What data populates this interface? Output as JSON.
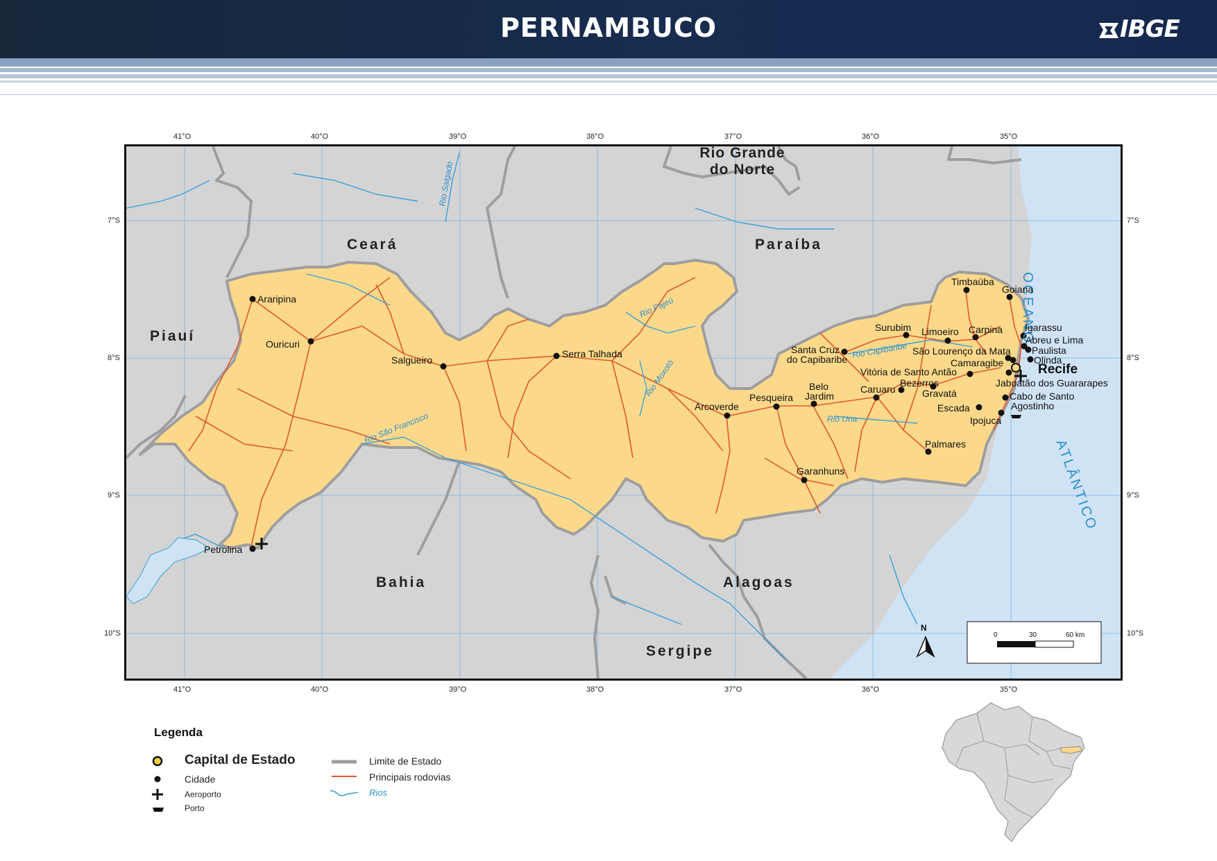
{
  "header": {
    "title": "PERNAMBUCO",
    "logo_text": "IBGE",
    "background": "#172c4f"
  },
  "map": {
    "lon_labels": [
      "41°O",
      "40°O",
      "39°O",
      "38°O",
      "37°O",
      "36°O",
      "35°O"
    ],
    "lat_labels": [
      "7°S",
      "8°S",
      "9°S",
      "10°S"
    ],
    "neighbors": {
      "rio_grande_do_norte_line1": "Rio Grande",
      "rio_grande_do_norte_line2": "do Norte",
      "ceara": "Ceará",
      "paraiba": "Paraíba",
      "piaui": "Piauí",
      "bahia": "Bahia",
      "alagoas": "Alagoas",
      "sergipe": "Sergipe"
    },
    "ocean": {
      "line1": "OCEANO",
      "line2": "ATLÂNTICO"
    },
    "rivers": {
      "salgado": "Rio Salgado",
      "pajeu": "Rio Pajeú",
      "moxoto": "Rio Moxotó",
      "sao_francisco": "Rio São Francisco",
      "capibaribe": "Rio Capibaribe",
      "una": "Rio Una"
    },
    "capital": "Recife",
    "cities": {
      "araripina": "Araripina",
      "ouricuri": "Ouricuri",
      "salgueiro": "Salgueiro",
      "serra_talhada": "Serra Talhada",
      "petrolina": "Petrolina",
      "arcoverde": "Arcoverde",
      "pesqueira": "Pesqueira",
      "belo_jardim_1": "Belo",
      "belo_jardim_2": "Jardim",
      "caruaru": "Caruaru",
      "bezerros": "Bezerros",
      "gravata": "Gravatá",
      "santa_cruz_1": "Santa Cruz",
      "santa_cruz_2": "do Capibaribe",
      "surubim": "Surubim",
      "limoeiro": "Limoeiro",
      "carpina": "Carpina",
      "timbauba": "Timbaúba",
      "goiana": "Goiana",
      "igarassu": "Igarassu",
      "abreu_e_lima": "Abreu e Lima",
      "paulista": "Paulista",
      "olinda": "Olinda",
      "sao_lourenco": "São Lourenço da Mata",
      "camaragibe": "Camaragibe",
      "vitoria": "Vitória de Santo Antão",
      "jaboatao": "Jaboatão dos Guararapes",
      "cabo_1": "Cabo de Santo",
      "cabo_2": "Agostinho",
      "escada": "Escada",
      "ipojuca": "Ipojuca",
      "palmares": "Palmares",
      "garanhuns": "Garanhuns"
    },
    "scale": {
      "ticks": [
        "0",
        "30",
        "60 km"
      ]
    },
    "north": "N",
    "colors": {
      "state_fill": "#fcd98a",
      "neighbor_fill": "#d4d4d4",
      "ocean": "#cfe3f5",
      "roads": "#e0582b",
      "rivers": "#3aa0d8",
      "borders": "#9e9e9e"
    }
  },
  "legend": {
    "title": "Legenda",
    "capital": "Capital de Estado",
    "city": "Cidade",
    "airport": "Aeroporto",
    "port": "Porto",
    "state_limit": "Limite de Estado",
    "roads": "Principais rodovias",
    "rivers": "Rios"
  }
}
